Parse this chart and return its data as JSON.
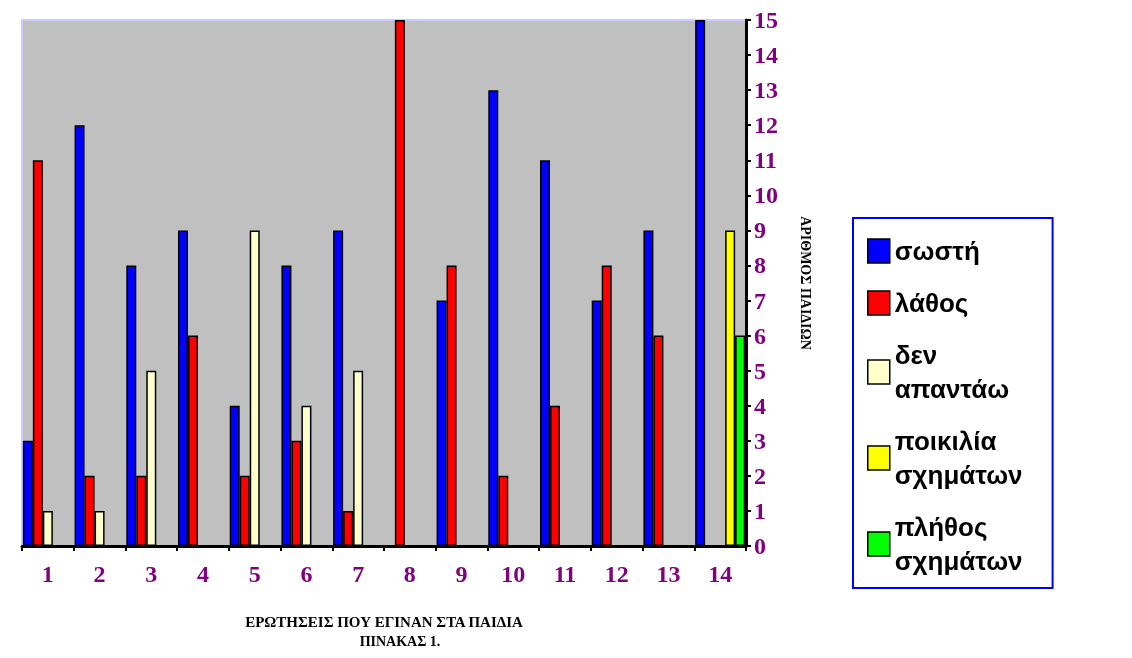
{
  "chart_data": {
    "type": "bar",
    "xlabel": "ΕΡΩΤΗΣΕΙΣ ΠΟΥ ΕΓΙΝΑΝ ΣΤΑ ΠΑΙΔΙΑ",
    "ylabel": "ΑΡΙΘΜΟΣ ΠΑΙΔΙΩΝ",
    "annotations": [
      "ΠΙΝΑΚΑΣ 1."
    ],
    "categories": [
      "1",
      "2",
      "3",
      "4",
      "5",
      "6",
      "7",
      "8",
      "9",
      "10",
      "11",
      "12",
      "13",
      "14"
    ],
    "series": [
      {
        "name": "σωστή",
        "color": "#0000ff",
        "values": [
          3,
          12,
          8,
          9,
          4,
          8,
          9,
          0,
          7,
          13,
          11,
          7,
          9,
          15
        ]
      },
      {
        "name": "λάθος",
        "color": "#ff0000",
        "values": [
          11,
          2,
          2,
          6,
          2,
          3,
          1,
          15,
          8,
          2,
          4,
          8,
          6,
          0
        ]
      },
      {
        "name": "δεν απαντάω",
        "color": "#ffffcc",
        "values": [
          1,
          1,
          5,
          0,
          9,
          4,
          5,
          0,
          0,
          0,
          0,
          0,
          0,
          0
        ]
      },
      {
        "name": "ποικιλία σχημάτων",
        "color": "#ffff00",
        "values": [
          null,
          null,
          null,
          null,
          null,
          null,
          null,
          null,
          null,
          null,
          null,
          null,
          null,
          9
        ]
      },
      {
        "name": "πλήθος σχημάτων",
        "color": "#00ff00",
        "values": [
          null,
          null,
          null,
          null,
          null,
          null,
          null,
          null,
          null,
          null,
          null,
          null,
          null,
          6
        ]
      }
    ],
    "ylim": [
      0,
      15
    ],
    "yticks": [
      0,
      1,
      2,
      3,
      4,
      5,
      6,
      7,
      8,
      9,
      10,
      11,
      12,
      13,
      14,
      15
    ],
    "grid": false,
    "legend": "right"
  }
}
